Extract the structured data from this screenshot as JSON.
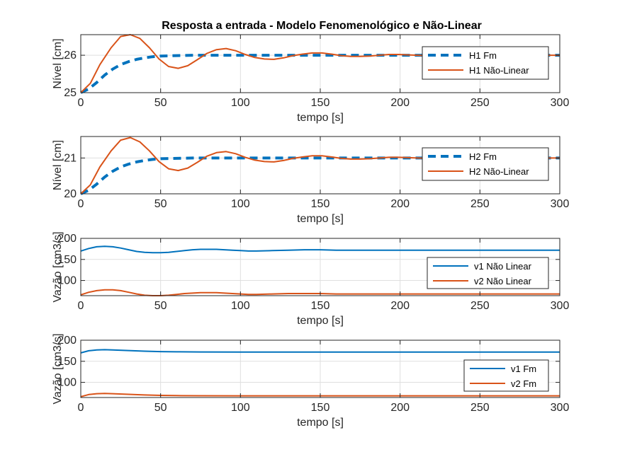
{
  "figure": {
    "title": "Resposta a entrada - Modelo Fenomenológico e Não-Linear"
  },
  "chart_data": [
    {
      "type": "line",
      "title": "Resposta a entrada - Modelo Fenomenológico e Não-Linear",
      "xlabel": "tempo [s]",
      "ylabel": "Nível [cm]",
      "xlim": [
        0,
        300
      ],
      "ylim": [
        25,
        26.55
      ],
      "xticks": [
        0,
        50,
        100,
        150,
        200,
        250,
        300
      ],
      "yticks": [
        25,
        26
      ],
      "grid": true,
      "legend_position": "right",
      "series": [
        {
          "name": "H1 Fm",
          "color": "#0072BD",
          "style": "dashed",
          "x": [
            0,
            5,
            10,
            15,
            20,
            25,
            30,
            35,
            40,
            45,
            50,
            60,
            70,
            80,
            100,
            150,
            200,
            250,
            300
          ],
          "y": [
            25.0,
            25.1,
            25.27,
            25.47,
            25.63,
            25.75,
            25.83,
            25.89,
            25.93,
            25.96,
            25.98,
            25.99,
            26.0,
            26.0,
            26.0,
            26.0,
            26.0,
            26.0,
            26.0
          ]
        },
        {
          "name": "H1 Não-Linear",
          "color": "#D95319",
          "style": "solid",
          "x": [
            0,
            6,
            12,
            19,
            25,
            31,
            37,
            43,
            49,
            55,
            61,
            67,
            73,
            79,
            85,
            91,
            97,
            103,
            109,
            115,
            121,
            127,
            133,
            139,
            145,
            151,
            157,
            163,
            169,
            175,
            181,
            187,
            193,
            199,
            205,
            211,
            217,
            223,
            229,
            235,
            241,
            247,
            253,
            259,
            265,
            271,
            277,
            283,
            289,
            295,
            300
          ],
          "y": [
            25.0,
            25.25,
            25.75,
            26.2,
            26.5,
            26.55,
            26.45,
            26.2,
            25.9,
            25.7,
            25.65,
            25.72,
            25.88,
            26.05,
            26.15,
            26.18,
            26.12,
            26.02,
            25.94,
            25.9,
            25.89,
            25.93,
            25.99,
            26.03,
            26.06,
            26.06,
            26.03,
            25.99,
            25.97,
            25.97,
            25.98,
            26.0,
            26.02,
            26.02,
            26.01,
            26.0,
            25.99,
            25.99,
            26.0,
            26.0,
            26.01,
            26.01,
            26.0,
            26.0,
            26.0,
            26.0,
            26.0,
            26.0,
            26.0,
            26.0,
            26.0
          ]
        }
      ]
    },
    {
      "type": "line",
      "xlabel": "tempo [s]",
      "ylabel": "Nível [cm]",
      "xlim": [
        0,
        300
      ],
      "ylim": [
        20,
        21.6
      ],
      "xticks": [
        0,
        50,
        100,
        150,
        200,
        250,
        300
      ],
      "yticks": [
        20,
        21
      ],
      "grid": true,
      "legend_position": "right",
      "series": [
        {
          "name": "H2 Fm",
          "color": "#0072BD",
          "style": "dashed",
          "x": [
            0,
            5,
            10,
            15,
            20,
            25,
            30,
            35,
            40,
            45,
            50,
            60,
            70,
            80,
            100,
            150,
            200,
            250,
            300
          ],
          "y": [
            20.0,
            20.1,
            20.27,
            20.47,
            20.63,
            20.75,
            20.83,
            20.89,
            20.93,
            20.96,
            20.98,
            20.99,
            21.0,
            21.0,
            21.0,
            21.0,
            21.0,
            21.0,
            21.0
          ]
        },
        {
          "name": "H2 Não-Linear",
          "color": "#D95319",
          "style": "solid",
          "x": [
            0,
            6,
            12,
            19,
            25,
            31,
            37,
            43,
            49,
            55,
            61,
            67,
            73,
            79,
            85,
            91,
            97,
            103,
            109,
            115,
            121,
            127,
            133,
            139,
            145,
            151,
            157,
            163,
            169,
            175,
            181,
            187,
            193,
            199,
            205,
            211,
            217,
            223,
            229,
            235,
            241,
            247,
            253,
            259,
            265,
            271,
            277,
            283,
            289,
            295,
            300
          ],
          "y": [
            20.0,
            20.25,
            20.75,
            21.2,
            21.5,
            21.57,
            21.45,
            21.2,
            20.9,
            20.7,
            20.65,
            20.72,
            20.88,
            21.05,
            21.15,
            21.18,
            21.12,
            21.02,
            20.94,
            20.9,
            20.89,
            20.93,
            20.99,
            21.03,
            21.06,
            21.06,
            21.03,
            20.99,
            20.97,
            20.97,
            20.98,
            21.0,
            21.02,
            21.02,
            21.01,
            21.0,
            20.99,
            20.99,
            21.0,
            21.0,
            21.01,
            21.01,
            21.0,
            21.0,
            21.0,
            21.0,
            21.0,
            21.0,
            21.0,
            21.0,
            21.0
          ]
        }
      ]
    },
    {
      "type": "line",
      "xlabel": "tempo [s]",
      "ylabel": "Vazão [cm3/s]",
      "xlim": [
        0,
        300
      ],
      "ylim": [
        64,
        200
      ],
      "xticks": [
        0,
        50,
        100,
        150,
        200,
        250,
        300
      ],
      "yticks": [
        100,
        150,
        200
      ],
      "grid": true,
      "legend_position": "bottom-right",
      "series": [
        {
          "name": "v1 Não Linear",
          "color": "#0072BD",
          "style": "solid",
          "x": [
            0,
            5,
            10,
            15,
            20,
            25,
            30,
            35,
            40,
            45,
            50,
            55,
            60,
            65,
            70,
            75,
            80,
            85,
            90,
            95,
            100,
            105,
            110,
            120,
            130,
            140,
            150,
            160,
            170,
            180,
            200,
            220,
            240,
            260,
            280,
            300
          ],
          "y": [
            170,
            176,
            180,
            181,
            180,
            177,
            173,
            169,
            167,
            166,
            166,
            167,
            169,
            171,
            173,
            174,
            174,
            174,
            173,
            172,
            171,
            170,
            170,
            171,
            172,
            173,
            173,
            172,
            172,
            172,
            172,
            172,
            172,
            172,
            172,
            172
          ]
        },
        {
          "name": "v2 Não Linear",
          "color": "#D95319",
          "style": "solid",
          "x": [
            0,
            5,
            10,
            15,
            20,
            25,
            30,
            35,
            40,
            45,
            50,
            55,
            60,
            65,
            70,
            75,
            80,
            85,
            90,
            95,
            100,
            105,
            110,
            120,
            130,
            140,
            150,
            160,
            170,
            180,
            200,
            220,
            240,
            260,
            280,
            300
          ],
          "y": [
            66,
            72,
            76,
            78,
            78,
            76,
            72,
            68,
            65,
            64,
            64,
            65,
            67,
            69,
            70,
            71,
            71,
            71,
            70,
            69,
            68,
            67,
            67,
            68,
            69,
            69,
            69,
            68,
            68,
            68,
            68,
            68,
            68,
            68,
            68,
            68
          ]
        }
      ]
    },
    {
      "type": "line",
      "xlabel": "tempo [s]",
      "ylabel": "Vazão [cm3/s]",
      "xlim": [
        0,
        300
      ],
      "ylim": [
        64,
        200
      ],
      "xticks": [
        0,
        50,
        100,
        150,
        200,
        250,
        300
      ],
      "yticks": [
        100,
        150,
        200
      ],
      "grid": true,
      "legend_position": "bottom-right",
      "series": [
        {
          "name": "v1 Fm",
          "color": "#0072BD",
          "style": "solid",
          "x": [
            0,
            5,
            10,
            15,
            20,
            30,
            40,
            50,
            60,
            75,
            100,
            150,
            200,
            250,
            300
          ],
          "y": [
            170,
            175,
            177,
            177.5,
            177,
            175.5,
            174,
            173,
            172.5,
            172.2,
            172,
            172,
            172,
            172,
            172
          ]
        },
        {
          "name": "v2 Fm",
          "color": "#D95319",
          "style": "solid",
          "x": [
            0,
            5,
            10,
            15,
            20,
            30,
            40,
            50,
            60,
            75,
            100,
            150,
            200,
            250,
            300
          ],
          "y": [
            66,
            71,
            73,
            73.5,
            73,
            71.5,
            70,
            69,
            68.5,
            68.2,
            68,
            68,
            68,
            68,
            68
          ]
        }
      ]
    }
  ]
}
